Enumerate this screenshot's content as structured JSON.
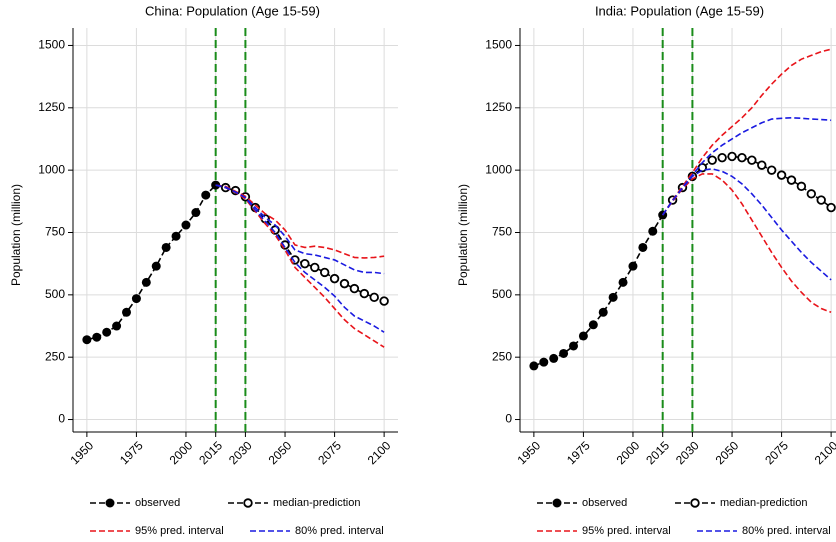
{
  "chart_data": [
    {
      "type": "line",
      "title": "China: Population (Age 15-59)",
      "y_label": "Population (million)",
      "x": [
        1950,
        1955,
        1960,
        1965,
        1970,
        1975,
        1980,
        1985,
        1990,
        1995,
        2000,
        2005,
        2010,
        2015,
        2020,
        2025,
        2030,
        2035,
        2040,
        2045,
        2050,
        2055,
        2060,
        2065,
        2070,
        2075,
        2080,
        2085,
        2090,
        2095,
        2100
      ],
      "xlim": [
        1943,
        2107
      ],
      "xticks": [
        1950,
        1975,
        2000,
        2015,
        2030,
        2050,
        2075,
        2100
      ],
      "ylim": [
        -50,
        1570
      ],
      "yticks": [
        0,
        250,
        500,
        750,
        1000,
        1250,
        1500
      ],
      "grid": true,
      "legend": "bottom",
      "vlines": [
        2015,
        2030
      ],
      "vline_color": "#1a8c1a",
      "series": [
        {
          "name": "observed",
          "color": "#000000",
          "marker": "filled",
          "values": [
            320,
            330,
            350,
            375,
            430,
            485,
            550,
            615,
            690,
            735,
            780,
            830,
            900,
            940,
            null,
            null,
            null,
            null,
            null,
            null,
            null,
            null,
            null,
            null,
            null,
            null,
            null,
            null,
            null,
            null,
            null
          ]
        },
        {
          "name": "median-prediction",
          "color": "#000000",
          "marker": "open",
          "values": [
            null,
            null,
            null,
            null,
            null,
            null,
            null,
            null,
            null,
            null,
            null,
            null,
            null,
            null,
            930,
            918,
            893,
            850,
            805,
            760,
            700,
            640,
            625,
            610,
            590,
            565,
            545,
            525,
            505,
            490,
            475
          ]
        },
        {
          "name": "95% pred. interval",
          "color": "#e8141a",
          "marker": "none",
          "values": [
            null,
            null,
            null,
            null,
            null,
            null,
            null,
            null,
            null,
            null,
            null,
            null,
            null,
            940,
            935,
            915,
            895,
            860,
            825,
            800,
            760,
            700,
            690,
            695,
            690,
            680,
            665,
            650,
            648,
            650,
            655
          ],
          "lower": [
            null,
            null,
            null,
            null,
            null,
            null,
            null,
            null,
            null,
            null,
            null,
            null,
            null,
            940,
            930,
            910,
            885,
            835,
            785,
            740,
            680,
            610,
            570,
            530,
            490,
            445,
            400,
            365,
            340,
            315,
            290
          ]
        },
        {
          "name": "80% pred. interval",
          "color": "#1a1ae0",
          "marker": "none",
          "values": [
            null,
            null,
            null,
            null,
            null,
            null,
            null,
            null,
            null,
            null,
            null,
            null,
            null,
            940,
            932,
            912,
            890,
            850,
            810,
            780,
            735,
            680,
            665,
            660,
            650,
            640,
            620,
            600,
            590,
            590,
            585
          ],
          "lower": [
            null,
            null,
            null,
            null,
            null,
            null,
            null,
            null,
            null,
            null,
            null,
            null,
            null,
            940,
            930,
            912,
            890,
            840,
            795,
            750,
            690,
            630,
            590,
            560,
            530,
            495,
            450,
            415,
            395,
            375,
            350
          ]
        }
      ]
    },
    {
      "type": "line",
      "title": "India: Population (Age 15-59)",
      "y_label": "Population (million)",
      "x": [
        1950,
        1955,
        1960,
        1965,
        1970,
        1975,
        1980,
        1985,
        1990,
        1995,
        2000,
        2005,
        2010,
        2015,
        2020,
        2025,
        2030,
        2035,
        2040,
        2045,
        2050,
        2055,
        2060,
        2065,
        2070,
        2075,
        2080,
        2085,
        2090,
        2095,
        2100
      ],
      "xlim": [
        1943,
        2107
      ],
      "xticks": [
        1950,
        1975,
        2000,
        2015,
        2030,
        2050,
        2075,
        2100
      ],
      "ylim": [
        -50,
        1570
      ],
      "yticks": [
        0,
        250,
        500,
        750,
        1000,
        1250,
        1500
      ],
      "grid": true,
      "legend": "bottom",
      "vlines": [
        2015,
        2030
      ],
      "vline_color": "#1a8c1a",
      "series": [
        {
          "name": "observed",
          "color": "#000000",
          "marker": "filled",
          "values": [
            215,
            230,
            245,
            265,
            295,
            335,
            380,
            430,
            490,
            550,
            615,
            690,
            755,
            820,
            null,
            null,
            null,
            null,
            null,
            null,
            null,
            null,
            null,
            null,
            null,
            null,
            null,
            null,
            null,
            null,
            null
          ]
        },
        {
          "name": "median-prediction",
          "color": "#000000",
          "marker": "open",
          "values": [
            null,
            null,
            null,
            null,
            null,
            null,
            null,
            null,
            null,
            null,
            null,
            null,
            null,
            null,
            880,
            930,
            975,
            1010,
            1040,
            1050,
            1055,
            1050,
            1040,
            1020,
            1000,
            980,
            960,
            935,
            905,
            880,
            850
          ]
        },
        {
          "name": "95% pred. interval",
          "color": "#e8141a",
          "marker": "none",
          "values": [
            null,
            null,
            null,
            null,
            null,
            null,
            null,
            null,
            null,
            null,
            null,
            null,
            null,
            820,
            880,
            935,
            990,
            1050,
            1100,
            1140,
            1175,
            1210,
            1250,
            1300,
            1345,
            1385,
            1420,
            1445,
            1460,
            1475,
            1485
          ],
          "lower": [
            null,
            null,
            null,
            null,
            null,
            null,
            null,
            null,
            null,
            null,
            null,
            null,
            null,
            820,
            875,
            925,
            965,
            985,
            985,
            960,
            920,
            865,
            800,
            735,
            670,
            610,
            555,
            510,
            470,
            445,
            430
          ]
        },
        {
          "name": "80% pred. interval",
          "color": "#1a1ae0",
          "marker": "none",
          "values": [
            null,
            null,
            null,
            null,
            null,
            null,
            null,
            null,
            null,
            null,
            null,
            null,
            null,
            820,
            878,
            930,
            980,
            1030,
            1070,
            1100,
            1125,
            1150,
            1170,
            1190,
            1205,
            1208,
            1210,
            1208,
            1205,
            1203,
            1200
          ],
          "lower": [
            null,
            null,
            null,
            null,
            null,
            null,
            null,
            null,
            null,
            null,
            null,
            null,
            null,
            820,
            878,
            928,
            975,
            1000,
            1005,
            995,
            975,
            945,
            905,
            860,
            810,
            760,
            715,
            670,
            630,
            595,
            560
          ]
        }
      ]
    }
  ]
}
